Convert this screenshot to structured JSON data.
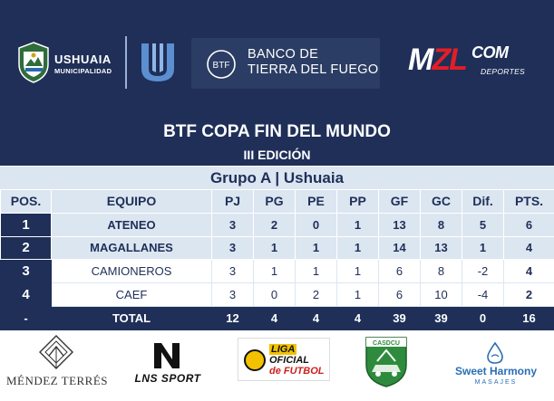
{
  "banner": {
    "ushuaia_name": "USHUAIA",
    "ushuaia_sub": "MUNICIPALIDAD",
    "bank_line1": "BANCO DE",
    "bank_line2": "TIERRA DEL FUEGO",
    "bank_mark_text": "BTF",
    "mzl_m": "M",
    "mzl_z": "Z",
    "mzl_l": "L",
    "mzl_com": "COM",
    "mzl_sub": "DEPORTES",
    "colors": {
      "navy": "#1f2f58",
      "accent_red": "#e41e26",
      "light_row": "#dce6f1"
    }
  },
  "titles": {
    "tournament": "BTF COPA FIN DEL MUNDO",
    "edition": "III EDICIÓN",
    "group": "Grupo A | Ushuaia"
  },
  "table": {
    "headers": [
      "POS.",
      "EQUIPO",
      "PJ",
      "PG",
      "PE",
      "PP",
      "GF",
      "GC",
      "Dif.",
      "PTS."
    ],
    "rows": [
      [
        "1",
        "ATENEO",
        "3",
        "2",
        "0",
        "1",
        "13",
        "8",
        "5",
        "6"
      ],
      [
        "2",
        "MAGALLANES",
        "3",
        "1",
        "1",
        "1",
        "14",
        "13",
        "1",
        "4"
      ],
      [
        "3",
        "CAMIONEROS",
        "3",
        "1",
        "1",
        "1",
        "6",
        "8",
        "-2",
        "4"
      ],
      [
        "4",
        "CAEF",
        "3",
        "0",
        "2",
        "1",
        "6",
        "10",
        "-4",
        "2"
      ]
    ],
    "total": [
      "-",
      "TOTAL",
      "12",
      "4",
      "4",
      "4",
      "39",
      "39",
      "0",
      "16"
    ]
  },
  "sponsors": {
    "mendez": "MÉNDEZ TERRÉS",
    "lns": "LNS SPORT",
    "liga_line1": "LIGA",
    "liga_line2": "OFICIAL",
    "liga_line3": "de FUTBOL",
    "liga_mark": "LFRG",
    "casdcu": "CASDCU",
    "sweet_name": "Sweet Harmony",
    "sweet_sub": "MASAJES"
  }
}
